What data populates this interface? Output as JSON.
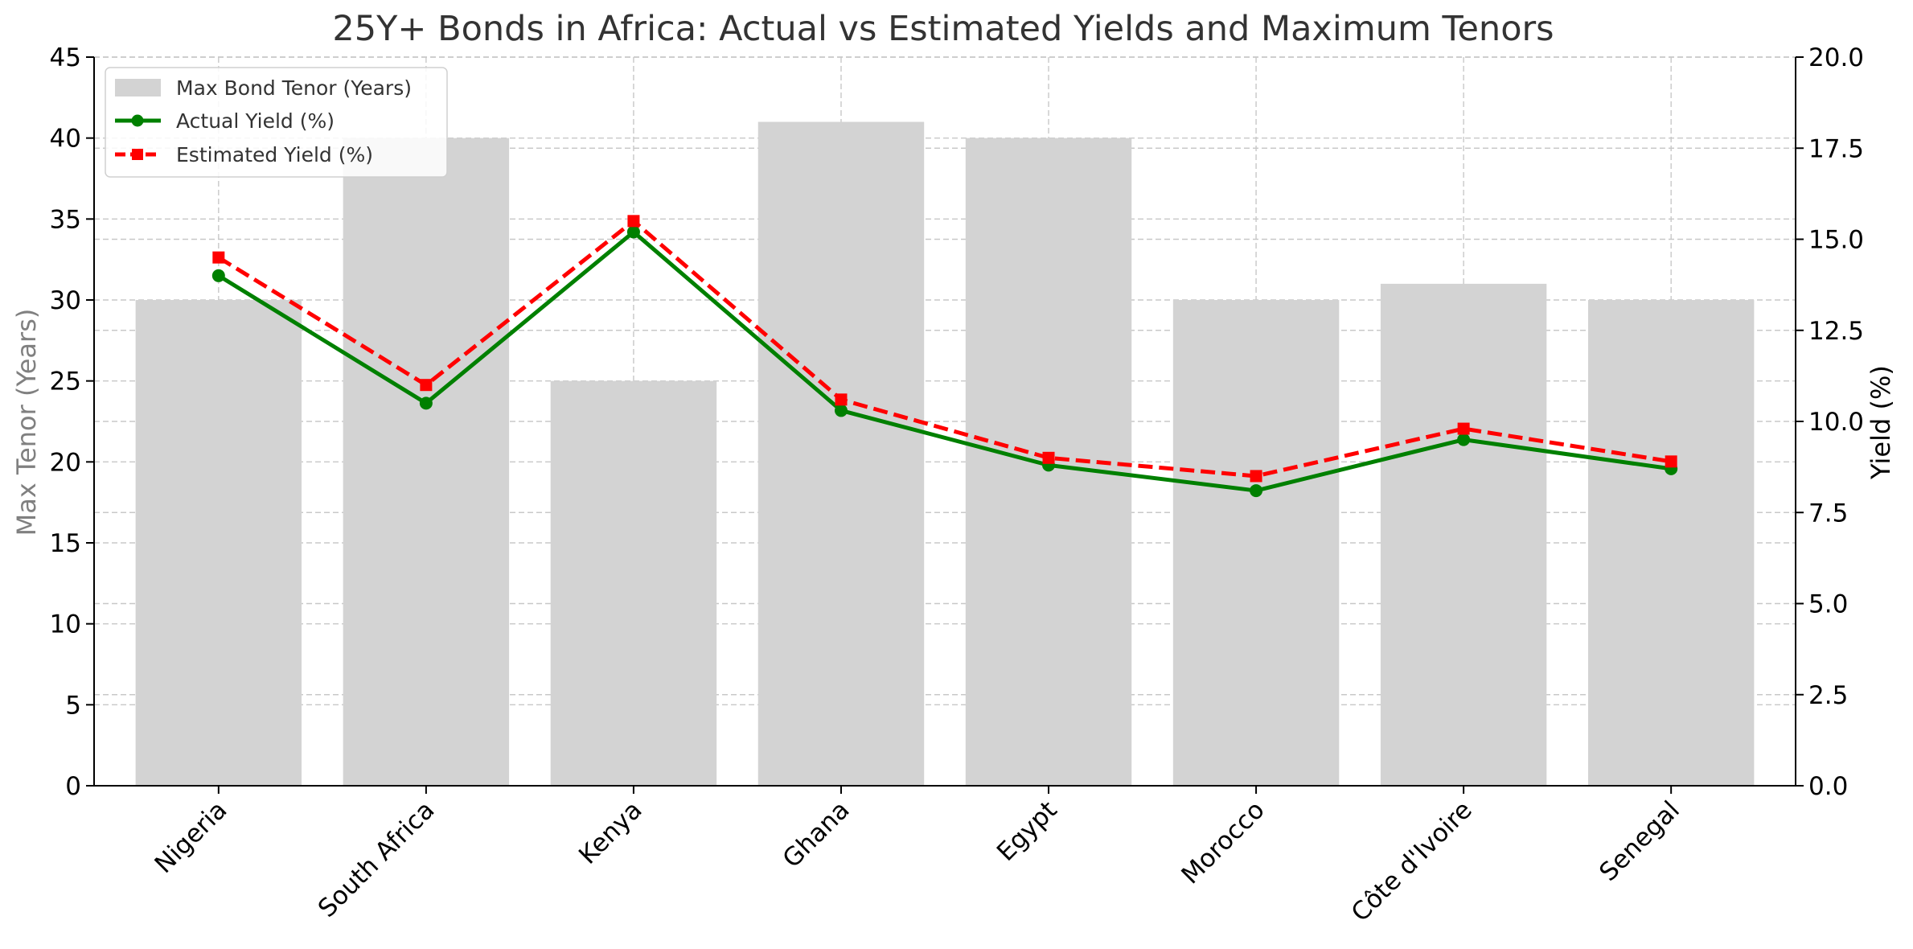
{
  "chart_data": {
    "type": "bar+line",
    "title": "25Y+ Bonds in Africa: Actual vs Estimated Yields and Maximum Tenors",
    "categories": [
      "Nigeria",
      "South Africa",
      "Kenya",
      "Ghana",
      "Egypt",
      "Morocco",
      "Côte d'Ivoire",
      "Senegal"
    ],
    "bars": {
      "name": "Max Bond Tenor (Years)",
      "values": [
        30,
        40,
        25,
        41,
        40,
        30,
        31,
        30
      ],
      "color": "#d3d3d3"
    },
    "series": [
      {
        "name": "Actual Yield (%)",
        "values": [
          14.0,
          10.5,
          15.2,
          10.3,
          8.8,
          8.1,
          9.5,
          8.7
        ],
        "color": "#008000",
        "marker": "circle",
        "linestyle": "solid"
      },
      {
        "name": "Estimated Yield (%)",
        "values": [
          14.5,
          11.0,
          15.5,
          10.6,
          9.0,
          8.5,
          9.8,
          8.9
        ],
        "color": "#ff0000",
        "marker": "square",
        "linestyle": "dashed"
      }
    ],
    "y_left": {
      "label": "Max Tenor (Years)",
      "lim": [
        0,
        45
      ],
      "ticks": [
        "0",
        "5",
        "10",
        "15",
        "20",
        "25",
        "30",
        "35",
        "40",
        "45"
      ]
    },
    "y_right": {
      "label": "Yield (%)",
      "lim": [
        0,
        20
      ],
      "ticks": [
        "0.0",
        "2.5",
        "5.0",
        "7.5",
        "10.0",
        "12.5",
        "15.0",
        "17.5",
        "20.0"
      ]
    },
    "grid": true,
    "legend": "top-left"
  }
}
